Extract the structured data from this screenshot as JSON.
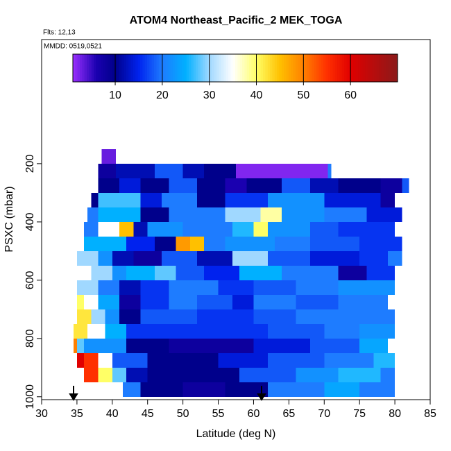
{
  "chart_data": {
    "type": "curtain",
    "title": "ATOM4 Northeast_Pacific_2 MEK_TOGA",
    "flights": "Flts: 12,13",
    "dates": "MMDD: 0519,0521",
    "x_label": "Latitude (deg N)",
    "y_label": "PSXC (mbar)",
    "xlim": [
      30,
      85
    ],
    "xticks": [
      30,
      35,
      40,
      45,
      50,
      55,
      60,
      65,
      70,
      75,
      80,
      85
    ],
    "ylim": [
      1010,
      -226
    ],
    "yticks": [
      200,
      400,
      600,
      800,
      1000
    ],
    "colorbar": {
      "lim": [
        1,
        70
      ],
      "ticks": [
        10,
        20,
        30,
        40,
        50,
        60
      ]
    },
    "colormap": [
      [
        1,
        "#9b30ff"
      ],
      [
        6,
        "#1a00b0"
      ],
      [
        10,
        "#00008b"
      ],
      [
        15,
        "#0022ee"
      ],
      [
        20,
        "#1e7cff"
      ],
      [
        25,
        "#00b0ff"
      ],
      [
        30,
        "#a0d8ff"
      ],
      [
        35,
        "#ffffff"
      ],
      [
        40,
        "#ffff66"
      ],
      [
        45,
        "#ffc000"
      ],
      [
        50,
        "#ff8000"
      ],
      [
        55,
        "#ff3000"
      ],
      [
        60,
        "#e00000"
      ],
      [
        70,
        "#8b1a1a"
      ]
    ],
    "bands": [
      {
        "p": [
          150,
          200
        ],
        "lat": [
          38.5,
          40.5
        ],
        "values": [
          3
        ]
      },
      {
        "p": [
          200,
          250
        ],
        "lat": [
          38,
          40.5,
          46,
          50,
          53,
          57.5,
          70.5,
          71
        ],
        "values": [
          8,
          12,
          18,
          12,
          10,
          2,
          20
        ]
      },
      {
        "p": [
          250,
          300
        ],
        "lat": [
          38,
          41,
          44,
          48,
          52,
          56,
          59,
          64,
          68,
          72,
          78,
          81,
          82
        ],
        "values": [
          10,
          14,
          10,
          18,
          10,
          6,
          10,
          18,
          12,
          10,
          8,
          18
        ]
      },
      {
        "p": [
          300,
          350
        ],
        "lat": [
          37,
          38,
          44,
          47,
          52,
          56,
          62,
          70,
          78,
          80
        ],
        "values": [
          10,
          27,
          14,
          20,
          10,
          16,
          22,
          14,
          8
        ]
      },
      {
        "p": [
          350,
          400
        ],
        "lat": [
          36.5,
          38,
          44,
          48,
          56,
          61,
          64,
          70,
          76,
          81
        ],
        "values": [
          20,
          25,
          10,
          20,
          30,
          38,
          22,
          20,
          14
        ]
      },
      {
        "p": [
          400,
          450
        ],
        "lat": [
          36,
          38,
          41,
          43,
          45,
          50,
          57,
          60,
          62,
          68,
          72,
          80
        ],
        "values": [
          20,
          35,
          45,
          12,
          22,
          20,
          26,
          40,
          22,
          18,
          16
        ]
      },
      {
        "p": [
          450,
          500
        ],
        "lat": [
          36,
          42,
          46,
          49,
          51,
          53,
          56,
          63,
          68,
          75,
          81
        ],
        "values": [
          25,
          15,
          10,
          48,
          45,
          20,
          22,
          20,
          18,
          16
        ]
      },
      {
        "p": [
          500,
          550
        ],
        "lat": [
          35,
          38,
          40,
          43,
          47,
          52,
          57,
          62,
          68,
          75,
          79,
          81
        ],
        "values": [
          30,
          22,
          12,
          8,
          18,
          12,
          30,
          18,
          14,
          16,
          20
        ]
      },
      {
        "p": [
          550,
          600
        ],
        "lat": [
          35,
          37,
          40,
          42,
          46,
          49,
          53,
          58,
          64,
          72,
          76,
          80
        ],
        "values": [
          35,
          30,
          22,
          25,
          28,
          18,
          15,
          25,
          20,
          8,
          16
        ]
      },
      {
        "p": [
          600,
          650
        ],
        "lat": [
          35,
          38,
          41,
          44,
          48,
          55,
          60,
          66,
          72,
          80
        ],
        "values": [
          30,
          20,
          12,
          16,
          20,
          16,
          18,
          20,
          22
        ]
      },
      {
        "p": [
          650,
          700
        ],
        "lat": [
          35,
          36,
          38,
          41,
          44,
          48,
          52,
          57,
          60,
          66,
          72,
          79
        ],
        "values": [
          40,
          35,
          24,
          8,
          16,
          20,
          18,
          14,
          20,
          18,
          20
        ]
      },
      {
        "p": [
          700,
          750
        ],
        "lat": [
          35,
          37,
          39,
          41,
          44,
          52,
          60,
          66,
          80
        ],
        "values": [
          42,
          30,
          22,
          10,
          18,
          16,
          18,
          20
        ]
      },
      {
        "p": [
          750,
          800
        ],
        "lat": [
          34.5,
          36.5,
          39,
          42,
          55,
          62,
          70,
          75,
          80
        ],
        "values": [
          42,
          35,
          25,
          16,
          16,
          18,
          20,
          22
        ]
      },
      {
        "p": [
          800,
          850
        ],
        "lat": [
          34.5,
          35,
          36,
          42,
          48,
          60,
          68,
          75,
          79
        ],
        "values": [
          50,
          28,
          22,
          10,
          8,
          14,
          18,
          24
        ]
      },
      {
        "p": [
          850,
          900
        ],
        "lat": [
          35,
          36,
          38,
          40,
          45,
          55,
          62,
          70,
          77,
          80
        ],
        "values": [
          60,
          55,
          35,
          18,
          10,
          14,
          18,
          20,
          26
        ]
      },
      {
        "p": [
          900,
          950
        ],
        "lat": [
          36,
          38,
          40,
          42,
          45,
          58,
          66,
          72,
          78,
          80
        ],
        "values": [
          55,
          40,
          28,
          12,
          10,
          18,
          22,
          26,
          20
        ]
      },
      {
        "p": [
          950,
          1000
        ],
        "lat": [
          41.5,
          44,
          50,
          56,
          62,
          70,
          75,
          80
        ],
        "values": [
          20,
          10,
          8,
          10,
          20,
          24,
          20
        ]
      }
    ]
  }
}
